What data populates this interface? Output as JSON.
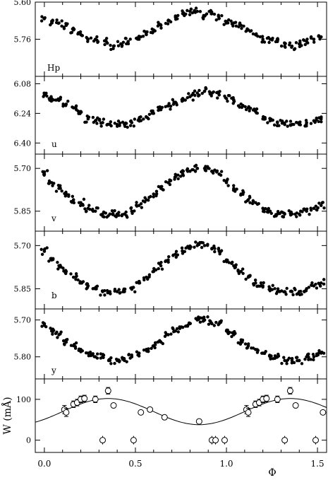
{
  "chart_data": [
    {
      "type": "scatter",
      "panel_label": "Hp",
      "ylim": [
        5.6,
        5.92
      ],
      "y_inverted": true,
      "y_ticks": [
        5.6,
        5.76
      ],
      "y_tick_labels": [
        "5.60",
        "5.76"
      ],
      "grid": false,
      "x": [
        0.0,
        0.04,
        0.08,
        0.12,
        0.16,
        0.2,
        0.24,
        0.28,
        0.34,
        0.38,
        0.42,
        0.46,
        0.52,
        0.56,
        0.6,
        0.64,
        0.68,
        0.72,
        0.76,
        0.8,
        0.84,
        0.88,
        0.92,
        0.96,
        1.0,
        1.04,
        1.08,
        1.12,
        1.16,
        1.2,
        1.24,
        1.28,
        1.32,
        1.36,
        1.4,
        1.44,
        1.48,
        1.52
      ],
      "y": [
        5.67,
        5.69,
        5.69,
        5.7,
        5.72,
        5.74,
        5.76,
        5.76,
        5.77,
        5.79,
        5.78,
        5.77,
        5.76,
        5.74,
        5.72,
        5.7,
        5.68,
        5.66,
        5.65,
        5.64,
        5.64,
        5.66,
        5.65,
        5.67,
        5.69,
        5.69,
        5.7,
        5.72,
        5.74,
        5.76,
        5.76,
        5.77,
        5.79,
        5.79,
        5.78,
        5.77,
        5.76,
        5.75
      ]
    },
    {
      "type": "scatter",
      "panel_label": "u",
      "ylim": [
        6.04,
        6.46
      ],
      "y_inverted": true,
      "y_ticks": [
        6.08,
        6.24,
        6.4
      ],
      "y_tick_labels": [
        "6.08",
        "6.24",
        "6.40"
      ],
      "grid": false,
      "x": [
        0.0,
        0.04,
        0.08,
        0.12,
        0.16,
        0.2,
        0.24,
        0.28,
        0.32,
        0.36,
        0.4,
        0.44,
        0.48,
        0.52,
        0.56,
        0.6,
        0.64,
        0.68,
        0.72,
        0.76,
        0.8,
        0.84,
        0.88,
        0.92,
        0.96,
        1.0,
        1.04,
        1.08,
        1.12,
        1.16,
        1.2,
        1.24,
        1.28,
        1.32,
        1.36,
        1.4,
        1.44,
        1.48,
        1.52
      ],
      "y": [
        6.14,
        6.16,
        6.17,
        6.19,
        6.21,
        6.23,
        6.27,
        6.28,
        6.29,
        6.3,
        6.3,
        6.3,
        6.29,
        6.27,
        6.26,
        6.24,
        6.22,
        6.2,
        6.18,
        6.16,
        6.15,
        6.13,
        6.12,
        6.13,
        6.14,
        6.16,
        6.17,
        6.19,
        6.21,
        6.23,
        6.27,
        6.28,
        6.29,
        6.3,
        6.3,
        6.3,
        6.29,
        6.28,
        6.27
      ]
    },
    {
      "type": "scatter",
      "panel_label": "v",
      "ylim": [
        5.65,
        5.92
      ],
      "y_inverted": true,
      "y_ticks": [
        5.7,
        5.85
      ],
      "y_tick_labels": [
        "5.70",
        "5.85"
      ],
      "grid": false,
      "x": [
        0.0,
        0.04,
        0.08,
        0.12,
        0.16,
        0.2,
        0.24,
        0.28,
        0.32,
        0.36,
        0.4,
        0.44,
        0.48,
        0.52,
        0.56,
        0.6,
        0.64,
        0.68,
        0.72,
        0.76,
        0.8,
        0.84,
        0.88,
        0.92,
        0.96,
        1.0,
        1.04,
        1.08,
        1.12,
        1.16,
        1.2,
        1.24,
        1.28,
        1.32,
        1.36,
        1.4,
        1.44,
        1.48,
        1.52
      ],
      "y": [
        5.72,
        5.75,
        5.77,
        5.79,
        5.81,
        5.82,
        5.84,
        5.85,
        5.86,
        5.86,
        5.86,
        5.86,
        5.85,
        5.83,
        5.81,
        5.79,
        5.77,
        5.75,
        5.73,
        5.72,
        5.71,
        5.7,
        5.7,
        5.71,
        5.72,
        5.75,
        5.77,
        5.79,
        5.81,
        5.82,
        5.84,
        5.85,
        5.86,
        5.86,
        5.86,
        5.86,
        5.85,
        5.84,
        5.83
      ]
    },
    {
      "type": "scatter",
      "panel_label": "b",
      "ylim": [
        5.65,
        5.92
      ],
      "y_inverted": true,
      "y_ticks": [
        5.7,
        5.85
      ],
      "y_tick_labels": [
        "5.70",
        "5.85"
      ],
      "grid": false,
      "x": [
        0.0,
        0.04,
        0.08,
        0.12,
        0.16,
        0.2,
        0.24,
        0.28,
        0.32,
        0.36,
        0.4,
        0.44,
        0.48,
        0.52,
        0.56,
        0.6,
        0.64,
        0.68,
        0.72,
        0.76,
        0.8,
        0.84,
        0.88,
        0.92,
        0.96,
        1.0,
        1.04,
        1.08,
        1.12,
        1.16,
        1.2,
        1.24,
        1.28,
        1.32,
        1.36,
        1.4,
        1.44,
        1.48,
        1.52
      ],
      "y": [
        5.72,
        5.75,
        5.77,
        5.79,
        5.81,
        5.83,
        5.84,
        5.85,
        5.86,
        5.86,
        5.86,
        5.86,
        5.85,
        5.83,
        5.81,
        5.79,
        5.77,
        5.75,
        5.73,
        5.72,
        5.71,
        5.7,
        5.7,
        5.71,
        5.72,
        5.75,
        5.77,
        5.79,
        5.81,
        5.83,
        5.84,
        5.85,
        5.86,
        5.86,
        5.86,
        5.86,
        5.85,
        5.84,
        5.83
      ]
    },
    {
      "type": "scatter",
      "panel_label": "y",
      "ylim": [
        5.67,
        5.86
      ],
      "y_inverted": true,
      "y_ticks": [
        5.7,
        5.8
      ],
      "y_tick_labels": [
        "5.70",
        "5.80"
      ],
      "grid": false,
      "x": [
        0.0,
        0.04,
        0.08,
        0.12,
        0.16,
        0.2,
        0.24,
        0.28,
        0.32,
        0.36,
        0.4,
        0.44,
        0.48,
        0.52,
        0.56,
        0.6,
        0.64,
        0.68,
        0.72,
        0.76,
        0.8,
        0.84,
        0.88,
        0.92,
        0.96,
        1.0,
        1.04,
        1.08,
        1.12,
        1.16,
        1.2,
        1.24,
        1.28,
        1.32,
        1.36,
        1.4,
        1.44,
        1.48,
        1.52
      ],
      "y": [
        5.71,
        5.73,
        5.74,
        5.76,
        5.77,
        5.78,
        5.79,
        5.8,
        5.8,
        5.81,
        5.81,
        5.81,
        5.8,
        5.79,
        5.78,
        5.77,
        5.76,
        5.74,
        5.73,
        5.72,
        5.71,
        5.7,
        5.7,
        5.71,
        5.71,
        5.73,
        5.74,
        5.76,
        5.77,
        5.78,
        5.79,
        5.8,
        5.8,
        5.81,
        5.81,
        5.81,
        5.8,
        5.8,
        5.79
      ]
    },
    {
      "type": "scatter",
      "panel_label": "",
      "ylabel": "W (mÅ)",
      "xlabel": "Φ",
      "xlim": [
        -0.05,
        1.55
      ],
      "x_ticks": [
        0.0,
        0.5,
        1.0,
        1.5
      ],
      "x_tick_labels": [
        "0.0",
        "0.5",
        "1.0",
        "1.5"
      ],
      "ylim": [
        -30,
        150
      ],
      "y_inverted": false,
      "y_ticks": [
        0,
        100
      ],
      "y_tick_labels": [
        "0",
        "100"
      ],
      "grid": false,
      "x": [
        0.11,
        0.12,
        0.16,
        0.18,
        0.2,
        0.22,
        0.28,
        0.35,
        0.38,
        0.53,
        0.58,
        0.66,
        0.85,
        1.11,
        1.12,
        1.16,
        1.18,
        1.2,
        1.22,
        1.28,
        1.35,
        1.38,
        1.53
      ],
      "y": [
        75,
        68,
        88,
        92,
        100,
        102,
        100,
        121,
        85,
        68,
        75,
        56,
        46,
        75,
        68,
        88,
        92,
        100,
        102,
        100,
        121,
        85,
        68
      ],
      "yerr": [
        10,
        10,
        8,
        8,
        8,
        8,
        8,
        8,
        5,
        5,
        5,
        5,
        5,
        10,
        10,
        8,
        8,
        8,
        8,
        8,
        8,
        5,
        5
      ],
      "zero_points_x": [
        0.32,
        0.49,
        0.92,
        0.94,
        0.99,
        1.32,
        1.49
      ],
      "zero_points_y": [
        0,
        0,
        0,
        0,
        0,
        0,
        0
      ],
      "curve": {
        "type": "sinusoid",
        "mean": 70,
        "amplitude": 32,
        "peak_phase": 0.35
      }
    }
  ]
}
